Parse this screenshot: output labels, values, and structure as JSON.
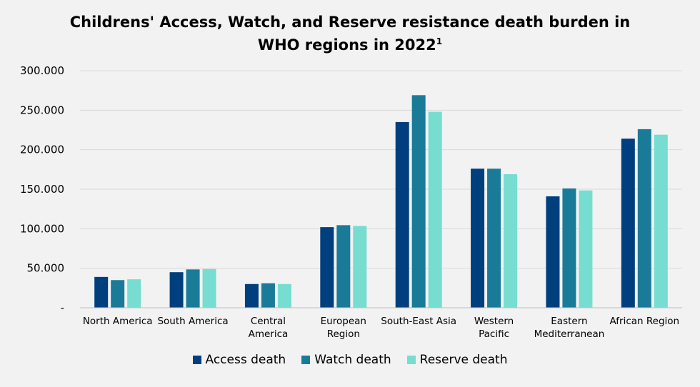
{
  "chart_data": {
    "type": "bar",
    "title_line1": "Childrens' Access, Watch, and Reserve resistance death burden in",
    "title_line2": "WHO regions in 2022",
    "title_sup": "1",
    "categories": [
      [
        "North America"
      ],
      [
        "South America"
      ],
      [
        "Central",
        "America"
      ],
      [
        "European",
        "Region"
      ],
      [
        "South-East Asia"
      ],
      [
        "Western",
        "Pacific"
      ],
      [
        "Eastern",
        "Mediterranean"
      ],
      [
        "African Region"
      ]
    ],
    "series": [
      {
        "name": "Access death",
        "color": "#003f7d",
        "values": [
          39000,
          45000,
          30000,
          102000,
          235000,
          176000,
          141000,
          214000
        ]
      },
      {
        "name": "Watch death",
        "color": "#1a7b99",
        "values": [
          35000,
          48500,
          31000,
          104500,
          269000,
          176000,
          151000,
          226000
        ]
      },
      {
        "name": "Reserve death",
        "color": "#76ddd0",
        "values": [
          36000,
          49000,
          30000,
          103500,
          248000,
          169000,
          148500,
          219000
        ]
      }
    ],
    "y_ticks": [
      {
        "value": 0,
        "label": "-"
      },
      {
        "value": 50000,
        "label": "50.000"
      },
      {
        "value": 100000,
        "label": "100.000"
      },
      {
        "value": 150000,
        "label": "150.000"
      },
      {
        "value": 200000,
        "label": "200.000"
      },
      {
        "value": 250000,
        "label": "250.000"
      },
      {
        "value": 300000,
        "label": "300.000"
      }
    ],
    "ylim": [
      0,
      300000
    ],
    "grid": true,
    "legend_position": "bottom"
  }
}
